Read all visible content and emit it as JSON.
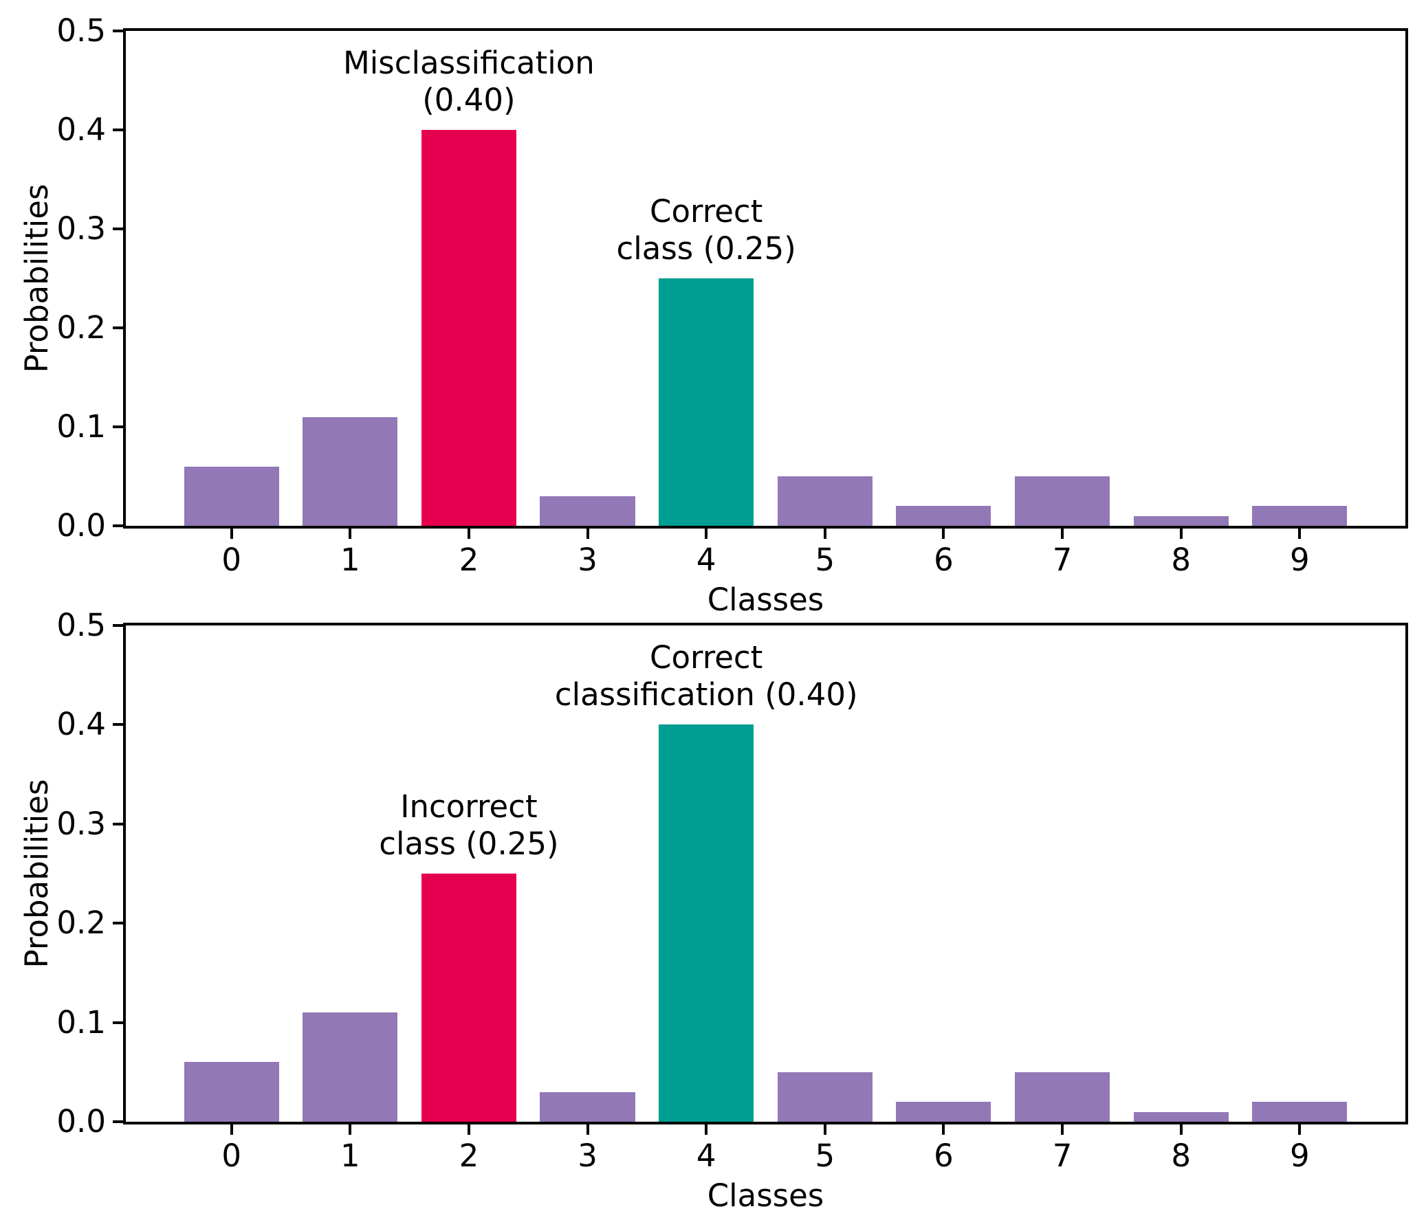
{
  "figure": {
    "background": "#ffffff",
    "colors": {
      "bar_default": "#9278B6",
      "bar_red": "#E60050",
      "bar_teal": "#009E92",
      "axis": "#000000",
      "text": "#000000"
    }
  },
  "chart_data": [
    {
      "type": "bar",
      "title": "",
      "xlabel": "Classes",
      "ylabel": "Probabilities",
      "categories": [
        "0",
        "1",
        "2",
        "3",
        "4",
        "5",
        "6",
        "7",
        "8",
        "9"
      ],
      "values": [
        0.06,
        0.11,
        0.4,
        0.03,
        0.25,
        0.05,
        0.02,
        0.05,
        0.01,
        0.02
      ],
      "ylim": [
        0,
        0.5
      ],
      "yticks": [
        "0.0",
        "0.1",
        "0.2",
        "0.3",
        "0.4",
        "0.5"
      ],
      "grid": false,
      "legend": "none",
      "highlight": {
        "red_class": 2,
        "teal_class": 4
      },
      "annotations": [
        {
          "class_index": 2,
          "lines": [
            "Misclassification",
            "(0.40)"
          ]
        },
        {
          "class_index": 4,
          "lines": [
            "Correct",
            "class (0.25)"
          ]
        }
      ]
    },
    {
      "type": "bar",
      "title": "",
      "xlabel": "Classes",
      "ylabel": "Probabilities",
      "categories": [
        "0",
        "1",
        "2",
        "3",
        "4",
        "5",
        "6",
        "7",
        "8",
        "9"
      ],
      "values": [
        0.06,
        0.11,
        0.25,
        0.03,
        0.4,
        0.05,
        0.02,
        0.05,
        0.01,
        0.02
      ],
      "ylim": [
        0,
        0.5
      ],
      "yticks": [
        "0.0",
        "0.1",
        "0.2",
        "0.3",
        "0.4",
        "0.5"
      ],
      "grid": false,
      "legend": "none",
      "highlight": {
        "red_class": 2,
        "teal_class": 4
      },
      "annotations": [
        {
          "class_index": 2,
          "lines": [
            "Incorrect",
            "class (0.25)"
          ]
        },
        {
          "class_index": 4,
          "lines": [
            "Correct",
            "classification (0.40)"
          ]
        }
      ]
    }
  ]
}
